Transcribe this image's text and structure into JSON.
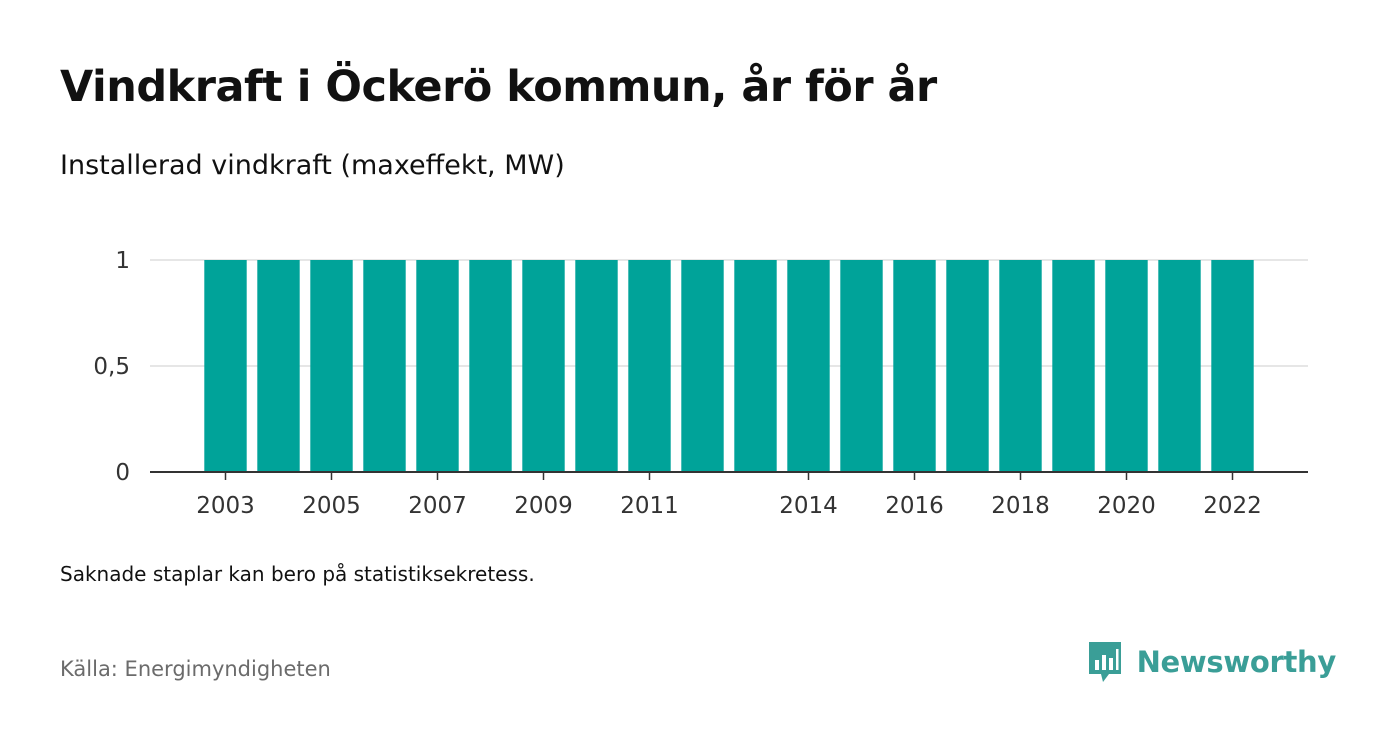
{
  "header": {
    "title": "Vindkraft i Öckerö kommun, år för år",
    "subtitle": "Installerad vindkraft (maxeffekt, MW)"
  },
  "footer": {
    "note": "Saknade staplar kan bero på statistiksekretess.",
    "source": "Källa: Energimyndigheten",
    "brand": "Newsworthy"
  },
  "colors": {
    "bar": "#00a399",
    "gridline": "#dddddd",
    "axis": "#333333",
    "brand": "#3a9e97"
  },
  "icons": {
    "brand_logo": "newsworthy-logo-icon"
  },
  "chart_data": {
    "type": "bar",
    "title": "Vindkraft i Öckerö kommun, år för år",
    "subtitle": "Installerad vindkraft (maxeffekt, MW)",
    "xlabel": "",
    "ylabel": "",
    "categories": [
      "2003",
      "2004",
      "2005",
      "2006",
      "2007",
      "2008",
      "2009",
      "2010",
      "2011",
      "2012",
      "2013",
      "2014",
      "2015",
      "2016",
      "2017",
      "2018",
      "2019",
      "2020",
      "2021",
      "2022"
    ],
    "x_tick_labels": [
      "2003",
      "2005",
      "2007",
      "2009",
      "2011",
      "2014",
      "2016",
      "2018",
      "2020",
      "2022"
    ],
    "values": [
      1,
      1,
      1,
      1,
      1,
      1,
      1,
      1,
      1,
      1,
      1,
      1,
      1,
      1,
      1,
      1,
      1,
      1,
      1,
      1
    ],
    "ylim": [
      0,
      1
    ],
    "y_ticks": [
      0,
      0.5,
      1
    ],
    "y_tick_labels": [
      "0",
      "0,5",
      "1"
    ],
    "grid": true,
    "legend": "none"
  }
}
